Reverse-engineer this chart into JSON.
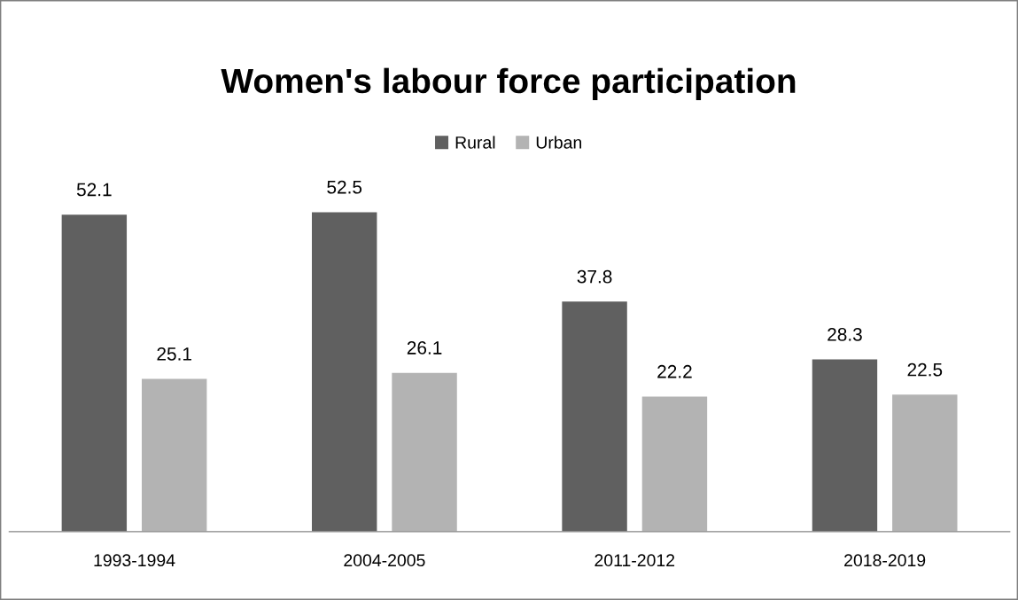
{
  "chart_data": {
    "type": "bar",
    "title": "Women's labour force participation",
    "categories": [
      "1993-1994",
      "2004-2005",
      "2011-2012",
      "2018-2019"
    ],
    "series": [
      {
        "name": "Rural",
        "color": "#606060",
        "values": [
          52.1,
          52.5,
          37.8,
          28.3
        ]
      },
      {
        "name": "Urban",
        "color": "#b3b3b3",
        "values": [
          25.1,
          26.1,
          22.2,
          22.5
        ]
      }
    ],
    "data_labels": true,
    "legend": "top",
    "grid": false,
    "tick_labels": "x"
  }
}
